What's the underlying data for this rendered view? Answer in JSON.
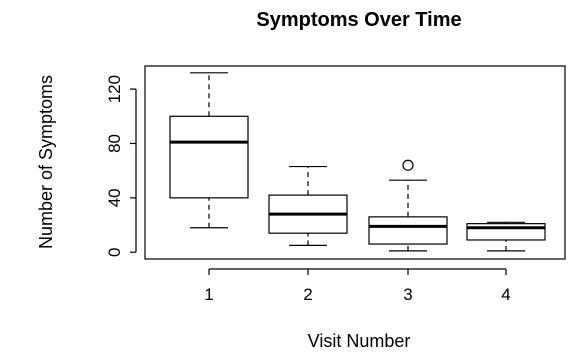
{
  "chart_data": {
    "type": "box",
    "title": "Symptoms Over Time",
    "xlabel": "Visit Number",
    "ylabel": "Number of Symptoms",
    "categories": [
      "1",
      "2",
      "3",
      "4"
    ],
    "yticks": [
      0,
      40,
      80,
      120
    ],
    "ylim": [
      -5,
      137
    ],
    "boxes": [
      {
        "category": "1",
        "min": 18,
        "q1": 40,
        "median": 81,
        "q3": 100,
        "max": 132,
        "outliers": []
      },
      {
        "category": "2",
        "min": 5,
        "q1": 14,
        "median": 28,
        "q3": 42,
        "max": 63,
        "outliers": []
      },
      {
        "category": "3",
        "min": 1,
        "q1": 6,
        "median": 19,
        "q3": 26,
        "max": 53,
        "outliers": [
          64
        ]
      },
      {
        "category": "4",
        "min": 1,
        "q1": 9,
        "median": 18,
        "q3": 21,
        "max": 22,
        "outliers": []
      }
    ],
    "grid": false,
    "legend": "none"
  }
}
